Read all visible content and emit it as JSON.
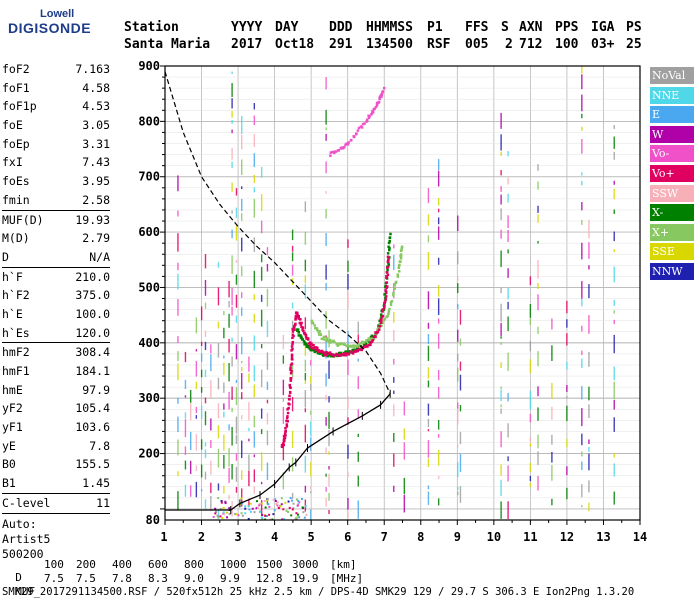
{
  "logo": {
    "top": "Lowell",
    "main": "DIGISONDE"
  },
  "header": {
    "labels": [
      "Station",
      "YYYY",
      "DAY",
      "DDD",
      "HHMMSS",
      "P1",
      "FFS",
      "S",
      "AXN",
      "PPS",
      "IGA",
      "PS"
    ],
    "values": [
      "Santa Maria",
      "2017",
      "Oct18",
      "291",
      "134500",
      "RSF",
      "005",
      "2",
      "712",
      "100",
      "03+",
      "25"
    ]
  },
  "params": [
    {
      "k": "foF2",
      "v": "7.163"
    },
    {
      "k": "foF1",
      "v": "4.58"
    },
    {
      "k": "foF1p",
      "v": "4.53"
    },
    {
      "k": "foE",
      "v": "3.05"
    },
    {
      "k": "foEp",
      "v": "3.31"
    },
    {
      "k": "fxI",
      "v": "7.43"
    },
    {
      "k": "foEs",
      "v": "3.95"
    },
    {
      "k": "fmin",
      "v": "2.58"
    }
  ],
  "params2": [
    {
      "k": "MUF(D)",
      "v": "19.93"
    },
    {
      "k": "M(D)",
      "v": "2.79"
    },
    {
      "k": "D",
      "v": "N/A"
    }
  ],
  "params3": [
    {
      "k": "h`F",
      "v": "210.0"
    },
    {
      "k": "h`F2",
      "v": "375.0"
    },
    {
      "k": "h`E",
      "v": "100.0"
    },
    {
      "k": "h`Es",
      "v": "120.0"
    }
  ],
  "params4": [
    {
      "k": "hmF2",
      "v": "308.4"
    },
    {
      "k": "hmF1",
      "v": "184.1"
    },
    {
      "k": "hmE",
      "v": "97.9"
    },
    {
      "k": "yF2",
      "v": "105.4"
    },
    {
      "k": "yF1",
      "v": "103.6"
    },
    {
      "k": "yE",
      "v": "7.8"
    },
    {
      "k": "B0",
      "v": "155.5"
    },
    {
      "k": "B1",
      "v": "1.45"
    }
  ],
  "clevel": {
    "k": "C-level",
    "v": "11"
  },
  "autoscale": [
    "Auto:",
    "Artist5",
    "500200"
  ],
  "legend": [
    {
      "label": "NoVal",
      "color": "#a0a0a0"
    },
    {
      "label": "NNE",
      "color": "#50d8e8"
    },
    {
      "label": "E",
      "color": "#4aa8f0"
    },
    {
      "label": "W",
      "color": "#b000a8"
    },
    {
      "label": "Vo-",
      "color": "#f050c8"
    },
    {
      "label": "Vo+",
      "color": "#e00060"
    },
    {
      "label": "SSW",
      "color": "#f8b0b8"
    },
    {
      "label": "X-",
      "color": "#008000"
    },
    {
      "label": "X+",
      "color": "#88c860"
    },
    {
      "label": "SSE",
      "color": "#d8d800"
    },
    {
      "label": "NNW",
      "color": "#2020b0"
    }
  ],
  "chart_data": {
    "type": "scatter",
    "x_ticks": [
      "1",
      "2",
      "3",
      "4",
      "5",
      "6",
      "7",
      "8",
      "9",
      "10",
      "11",
      "12",
      "13",
      "14"
    ],
    "y_ticks": [
      "80",
      "200",
      "300",
      "400",
      "500",
      "600",
      "700",
      "800",
      "900"
    ],
    "xlim": [
      1,
      14
    ],
    "ylim": [
      80,
      900
    ],
    "grid": true,
    "series": [
      {
        "name": "X-",
        "color": "#008000",
        "points": [
          [
            4.6,
            425
          ],
          [
            4.8,
            400
          ],
          [
            5.0,
            390
          ],
          [
            5.3,
            380
          ],
          [
            5.6,
            378
          ],
          [
            6.0,
            383
          ],
          [
            6.4,
            393
          ],
          [
            6.8,
            420
          ],
          [
            7.0,
            470
          ],
          [
            7.1,
            540
          ],
          [
            7.15,
            600
          ]
        ]
      },
      {
        "name": "X+",
        "color": "#88c860",
        "points": [
          [
            5.0,
            440
          ],
          [
            5.3,
            410
          ],
          [
            5.7,
            398
          ],
          [
            6.2,
            395
          ],
          [
            6.7,
            410
          ],
          [
            7.1,
            450
          ],
          [
            7.4,
            530
          ],
          [
            7.5,
            580
          ]
        ]
      },
      {
        "name": "Vo+",
        "color": "#e00060",
        "points": [
          [
            4.2,
            210
          ],
          [
            4.3,
            240
          ],
          [
            4.4,
            300
          ],
          [
            4.45,
            360
          ],
          [
            4.5,
            420
          ],
          [
            4.6,
            455
          ],
          [
            4.8,
            420
          ],
          [
            5.0,
            395
          ],
          [
            5.3,
            382
          ],
          [
            5.7,
            378
          ],
          [
            6.2,
            383
          ],
          [
            6.6,
            398
          ],
          [
            6.9,
            430
          ],
          [
            7.05,
            490
          ],
          [
            7.1,
            560
          ]
        ]
      },
      {
        "name": "Vo-",
        "color": "#f050c8",
        "points": [
          [
            5.5,
            740
          ],
          [
            6.0,
            760
          ],
          [
            6.5,
            800
          ],
          [
            6.8,
            830
          ],
          [
            7.0,
            860
          ]
        ]
      }
    ],
    "profile_true_height": [
      [
        1.0,
        98
      ],
      [
        2.8,
        98
      ],
      [
        3.05,
        110
      ],
      [
        3.6,
        125
      ],
      [
        4.0,
        145
      ],
      [
        4.4,
        175
      ],
      [
        4.58,
        184
      ],
      [
        4.9,
        210
      ],
      [
        5.6,
        240
      ],
      [
        6.4,
        268
      ],
      [
        6.9,
        288
      ],
      [
        7.163,
        308
      ]
    ],
    "profile_model": [
      [
        1.0,
        890
      ],
      [
        1.5,
        780
      ],
      [
        2.0,
        700
      ],
      [
        2.5,
        650
      ],
      [
        3.0,
        610
      ],
      [
        3.5,
        575
      ],
      [
        4.0,
        545
      ],
      [
        4.5,
        510
      ],
      [
        5.0,
        475
      ],
      [
        5.5,
        440
      ],
      [
        6.0,
        415
      ],
      [
        6.5,
        385
      ],
      [
        6.9,
        345
      ],
      [
        7.163,
        308
      ]
    ]
  },
  "footer": {
    "row1_label": "D",
    "row1_values": [
      "100",
      "200",
      "400",
      "600",
      "800",
      "1000",
      "1500",
      "3000"
    ],
    "row1_unit": "[km]",
    "row2_label": "MUF",
    "row2_values": [
      "7.5",
      "7.5",
      "7.8",
      "8.3",
      "9.0",
      "9.9",
      "12.8",
      "19.9"
    ],
    "row2_unit": "[MHz]",
    "status": "SMK29_2017291134500.RSF / 520fx512h 25 kHz 2.5 km / DPS-4D SMK29 129 / 29.7 S 306.3 E Ion2Png 1.3.20"
  }
}
